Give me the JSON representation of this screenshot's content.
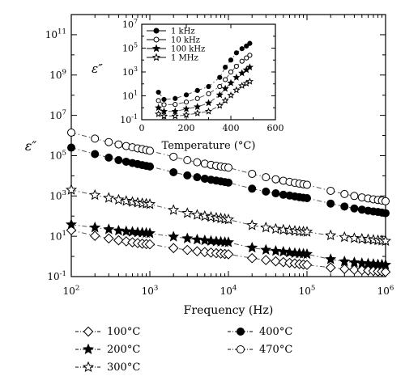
{
  "chart_data": [
    {
      "type": "scatter",
      "xlabel": "Frequency (Hz)",
      "ylabel": "ε″",
      "xscale": "log",
      "yscale": "log",
      "xlim": [
        100,
        1000000
      ],
      "ylim": [
        0.1,
        1000000000000
      ],
      "x_ticks": [
        "10^2",
        "10^3",
        "10^4",
        "10^5",
        "10^6"
      ],
      "y_ticks": [
        "10^-1",
        "10^1",
        "10^3",
        "10^5",
        "10^7",
        "10^9",
        "10^11"
      ],
      "legend_position": "bottom",
      "series": [
        {
          "name": "100°C",
          "marker": "open-diamond",
          "x": [
            100,
            200,
            300,
            400,
            500,
            600,
            700,
            800,
            900,
            1000,
            2000,
            3000,
            4000,
            5000,
            6000,
            7000,
            8000,
            9000,
            10000,
            20000,
            30000,
            40000,
            50000,
            60000,
            70000,
            80000,
            90000,
            100000,
            200000,
            300000,
            400000,
            500000,
            600000,
            700000,
            800000,
            900000,
            1000000
          ],
          "y": [
            20,
            10.5,
            7.8,
            6.3,
            5.6,
            5,
            4.6,
            4.3,
            4.1,
            4,
            2.6,
            2.1,
            1.8,
            1.65,
            1.55,
            1.45,
            1.38,
            1.33,
            1.28,
            0.82,
            0.66,
            0.57,
            0.52,
            0.48,
            0.45,
            0.42,
            0.4,
            0.38,
            0.28,
            0.24,
            0.22,
            0.21,
            0.2,
            0.19,
            0.18,
            0.18,
            0.17
          ]
        },
        {
          "name": "200°C",
          "marker": "filled-star",
          "x": [
            100,
            200,
            300,
            400,
            500,
            600,
            700,
            800,
            900,
            1000,
            2000,
            3000,
            4000,
            5000,
            6000,
            7000,
            8000,
            9000,
            10000,
            20000,
            30000,
            40000,
            50000,
            60000,
            70000,
            80000,
            90000,
            100000,
            200000,
            300000,
            400000,
            500000,
            600000,
            700000,
            800000,
            900000,
            1000000
          ],
          "y": [
            38,
            27,
            22,
            19,
            17.5,
            16.5,
            15.5,
            15,
            14.5,
            14,
            9.5,
            7.8,
            6.8,
            6.2,
            5.8,
            5.5,
            5.3,
            5.1,
            5,
            2.7,
            2.1,
            1.85,
            1.7,
            1.55,
            1.45,
            1.4,
            1.35,
            1.3,
            0.72,
            0.56,
            0.5,
            0.46,
            0.44,
            0.42,
            0.4,
            0.39,
            0.38
          ]
        },
        {
          "name": "300°C",
          "marker": "open-star",
          "x": [
            100,
            200,
            300,
            400,
            500,
            600,
            700,
            800,
            900,
            1000,
            2000,
            3000,
            4000,
            5000,
            6000,
            7000,
            8000,
            9000,
            10000,
            20000,
            30000,
            40000,
            50000,
            60000,
            70000,
            80000,
            90000,
            100000,
            200000,
            300000,
            400000,
            500000,
            600000,
            700000,
            800000,
            900000,
            1000000
          ],
          "y": [
            2000,
            1100,
            800,
            650,
            560,
            500,
            460,
            430,
            410,
            390,
            200,
            140,
            115,
            100,
            90,
            82,
            77,
            72,
            68,
            35,
            27,
            23,
            21,
            19.5,
            18.5,
            17.5,
            17,
            16.5,
            11,
            9,
            8,
            7.4,
            7,
            6.6,
            6.3,
            6.1,
            5.8
          ]
        },
        {
          "name": "400°C",
          "marker": "filled-circle",
          "x": [
            100,
            200,
            300,
            400,
            500,
            600,
            700,
            800,
            900,
            1000,
            2000,
            3000,
            4000,
            5000,
            6000,
            7000,
            8000,
            9000,
            10000,
            20000,
            30000,
            40000,
            50000,
            60000,
            70000,
            80000,
            90000,
            100000,
            200000,
            300000,
            400000,
            500000,
            600000,
            700000,
            800000,
            900000,
            1000000
          ],
          "y": [
            250000,
            120000,
            80000,
            60000,
            50000,
            43000,
            38000,
            34000,
            31000,
            29000,
            15000,
            10500,
            8500,
            7200,
            6400,
            5800,
            5300,
            4900,
            4600,
            2300,
            1650,
            1350,
            1150,
            1050,
            950,
            880,
            820,
            780,
            420,
            300,
            240,
            210,
            185,
            170,
            160,
            150,
            140
          ]
        },
        {
          "name": "470°C",
          "marker": "open-circle",
          "x": [
            100,
            200,
            300,
            400,
            500,
            600,
            700,
            800,
            900,
            1000,
            2000,
            3000,
            4000,
            5000,
            6000,
            7000,
            8000,
            9000,
            10000,
            20000,
            30000,
            40000,
            50000,
            60000,
            70000,
            80000,
            90000,
            100000,
            200000,
            300000,
            400000,
            500000,
            600000,
            700000,
            800000,
            900000,
            1000000
          ],
          "y": [
            1400000,
            700000,
            470000,
            360000,
            300000,
            260000,
            230000,
            210000,
            190000,
            175000,
            88000,
            60000,
            47000,
            40000,
            35000,
            31500,
            29000,
            27000,
            25500,
            12500,
            8500,
            6700,
            5700,
            5000,
            4500,
            4100,
            3800,
            3600,
            1800,
            1250,
            1000,
            850,
            750,
            680,
            630,
            590,
            550
          ]
        }
      ]
    },
    {
      "type": "scatter",
      "xlabel": "Temperature (°C)",
      "ylabel": "ε″",
      "xscale": "linear",
      "yscale": "log",
      "xlim": [
        0,
        600
      ],
      "ylim": [
        0.1,
        10000000
      ],
      "x_ticks": [
        "0",
        "200",
        "400",
        "600"
      ],
      "y_ticks": [
        "10^-1",
        "10^1",
        "10^3",
        "10^5",
        "10^7"
      ],
      "legend_position": "top-left",
      "series": [
        {
          "name": "1 kHz",
          "marker": "filled-circle",
          "x": [
            75,
            100,
            150,
            200,
            250,
            300,
            350,
            375,
            400,
            425,
            450,
            470,
            485
          ],
          "y": [
            20,
            5,
            6,
            12,
            28,
            60,
            350,
            2500,
            10000,
            40000,
            90000,
            150000,
            250000
          ]
        },
        {
          "name": "10 kHz",
          "marker": "open-circle",
          "x": [
            75,
            100,
            150,
            200,
            250,
            300,
            350,
            375,
            400,
            425,
            450,
            470,
            485
          ],
          "y": [
            4,
            1.8,
            1.9,
            3,
            6,
            15,
            60,
            230,
            1000,
            3000,
            8000,
            15000,
            25000
          ]
        },
        {
          "name": "100 kHz",
          "marker": "filled-star",
          "x": [
            75,
            100,
            150,
            200,
            250,
            300,
            350,
            375,
            400,
            425,
            450,
            470,
            485
          ],
          "y": [
            1,
            0.5,
            0.5,
            0.8,
            1.2,
            2.5,
            12,
            40,
            120,
            350,
            800,
            1500,
            2500
          ]
        },
        {
          "name": "1 MHz",
          "marker": "open-star",
          "x": [
            75,
            100,
            150,
            200,
            250,
            300,
            350,
            375,
            400,
            425,
            450,
            470,
            485
          ],
          "y": [
            0.3,
            0.2,
            0.2,
            0.25,
            0.35,
            0.5,
            1.5,
            4,
            11,
            30,
            70,
            110,
            160
          ]
        }
      ]
    }
  ]
}
